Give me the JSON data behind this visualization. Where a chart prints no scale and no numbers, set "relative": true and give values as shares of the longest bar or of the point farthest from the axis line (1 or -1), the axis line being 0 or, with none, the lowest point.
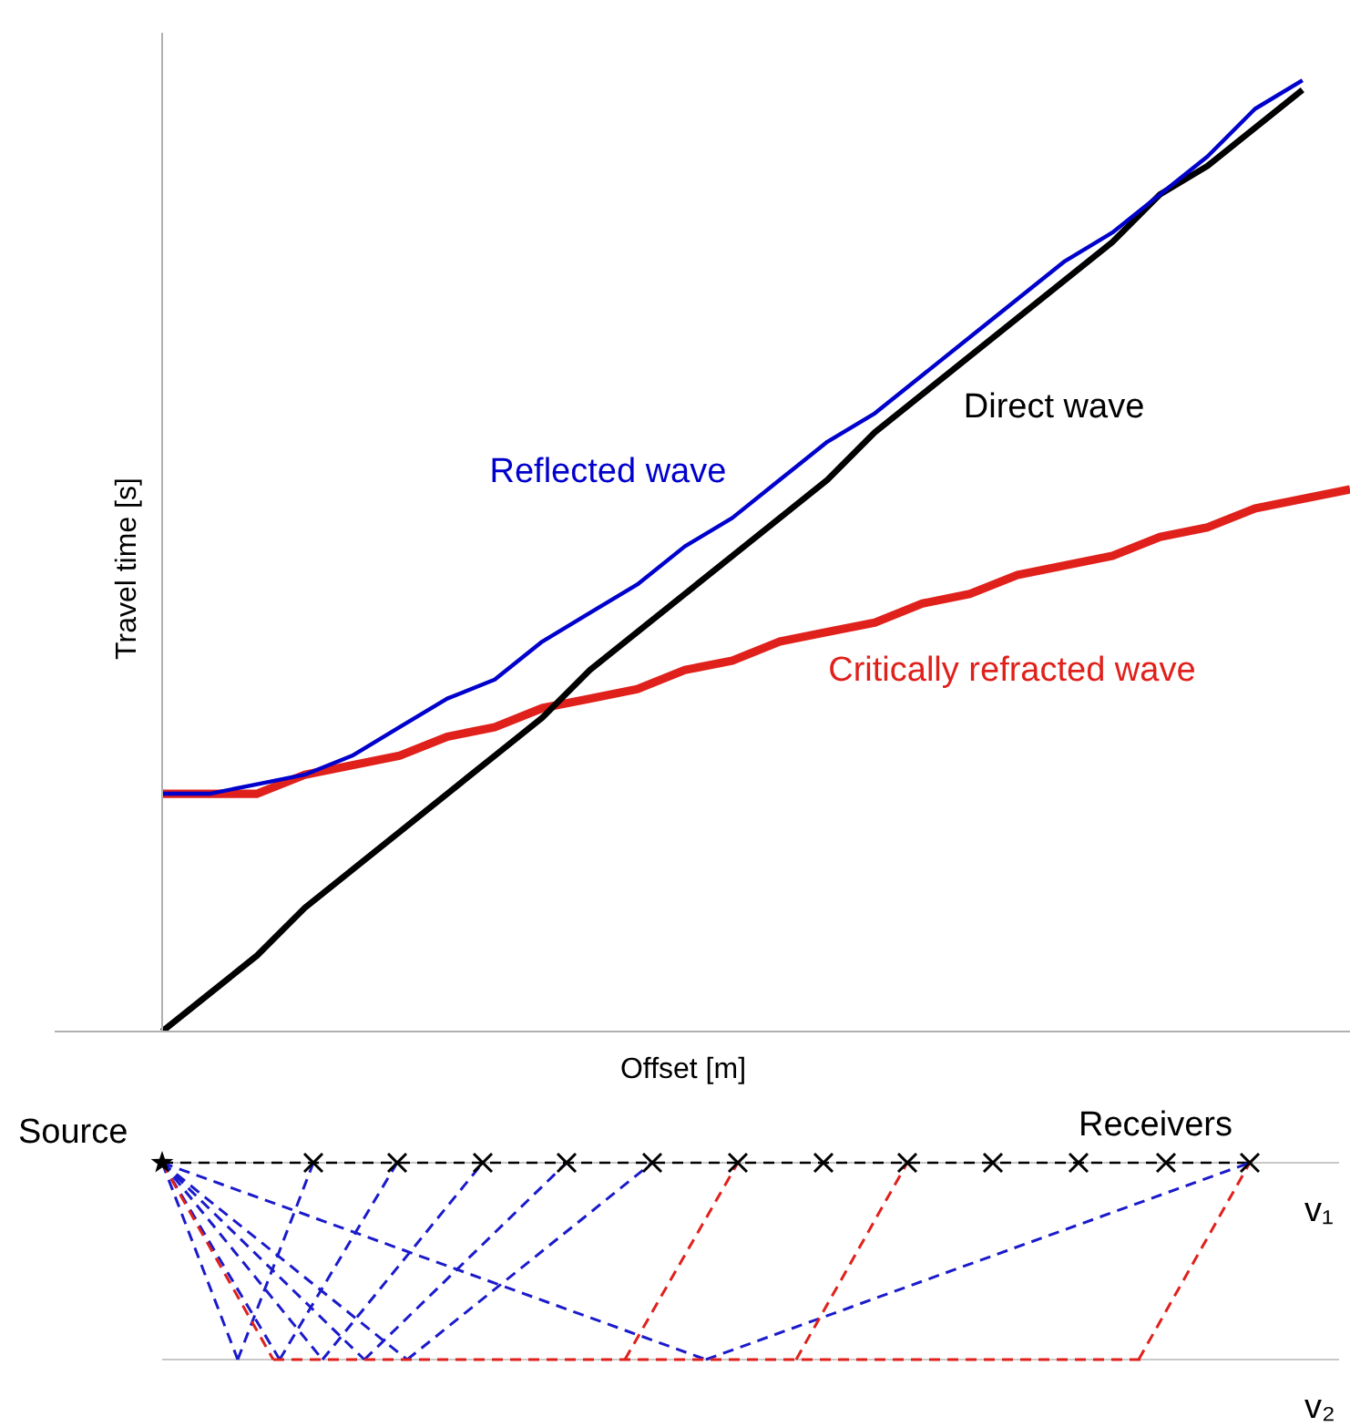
{
  "chart_data": {
    "type": "line",
    "relative": true,
    "xlabel": "Offset [m]",
    "ylabel": "Travel time [s]",
    "marker": "none",
    "line_style": "solid",
    "categories": [
      null,
      null,
      null,
      null,
      null,
      null,
      null,
      null,
      null,
      null,
      null,
      null,
      null,
      null,
      null,
      null,
      null,
      null,
      null,
      null,
      null,
      null,
      null,
      null,
      null,
      null
    ],
    "series": [
      {
        "name": "Reflected wave",
        "color": "#0000cc",
        "values": [
          0.25,
          0.25,
          0.26,
          0.27,
          0.29,
          0.32,
          0.35,
          0.37,
          0.41,
          0.44,
          0.47,
          0.51,
          0.54,
          0.58,
          0.62,
          0.65,
          0.69,
          0.73,
          0.77,
          0.81,
          0.84,
          0.88,
          0.92,
          0.97,
          1,
          null
        ]
      },
      {
        "name": "Direct wave",
        "color": "#000000",
        "values": [
          0,
          0.04,
          0.08,
          0.13,
          0.17,
          0.21,
          0.25,
          0.29,
          0.33,
          0.38,
          0.42,
          0.46,
          0.5,
          0.54,
          0.58,
          0.63,
          0.67,
          0.71,
          0.75,
          0.79,
          0.83,
          0.88,
          0.91,
          0.95,
          0.99,
          null
        ]
      },
      {
        "name": "Critically refracted wave",
        "color": "#e0201b",
        "values": [
          0.25,
          0.25,
          0.25,
          0.27,
          0.28,
          0.29,
          0.31,
          0.32,
          0.34,
          0.35,
          0.36,
          0.38,
          0.39,
          0.41,
          0.42,
          0.43,
          0.45,
          0.46,
          0.48,
          0.49,
          0.5,
          0.52,
          0.53,
          0.55,
          0.56,
          0.57
        ]
      }
    ],
    "annotations": [
      "Source",
      "Receivers",
      "v₁",
      "v₂"
    ]
  }
}
